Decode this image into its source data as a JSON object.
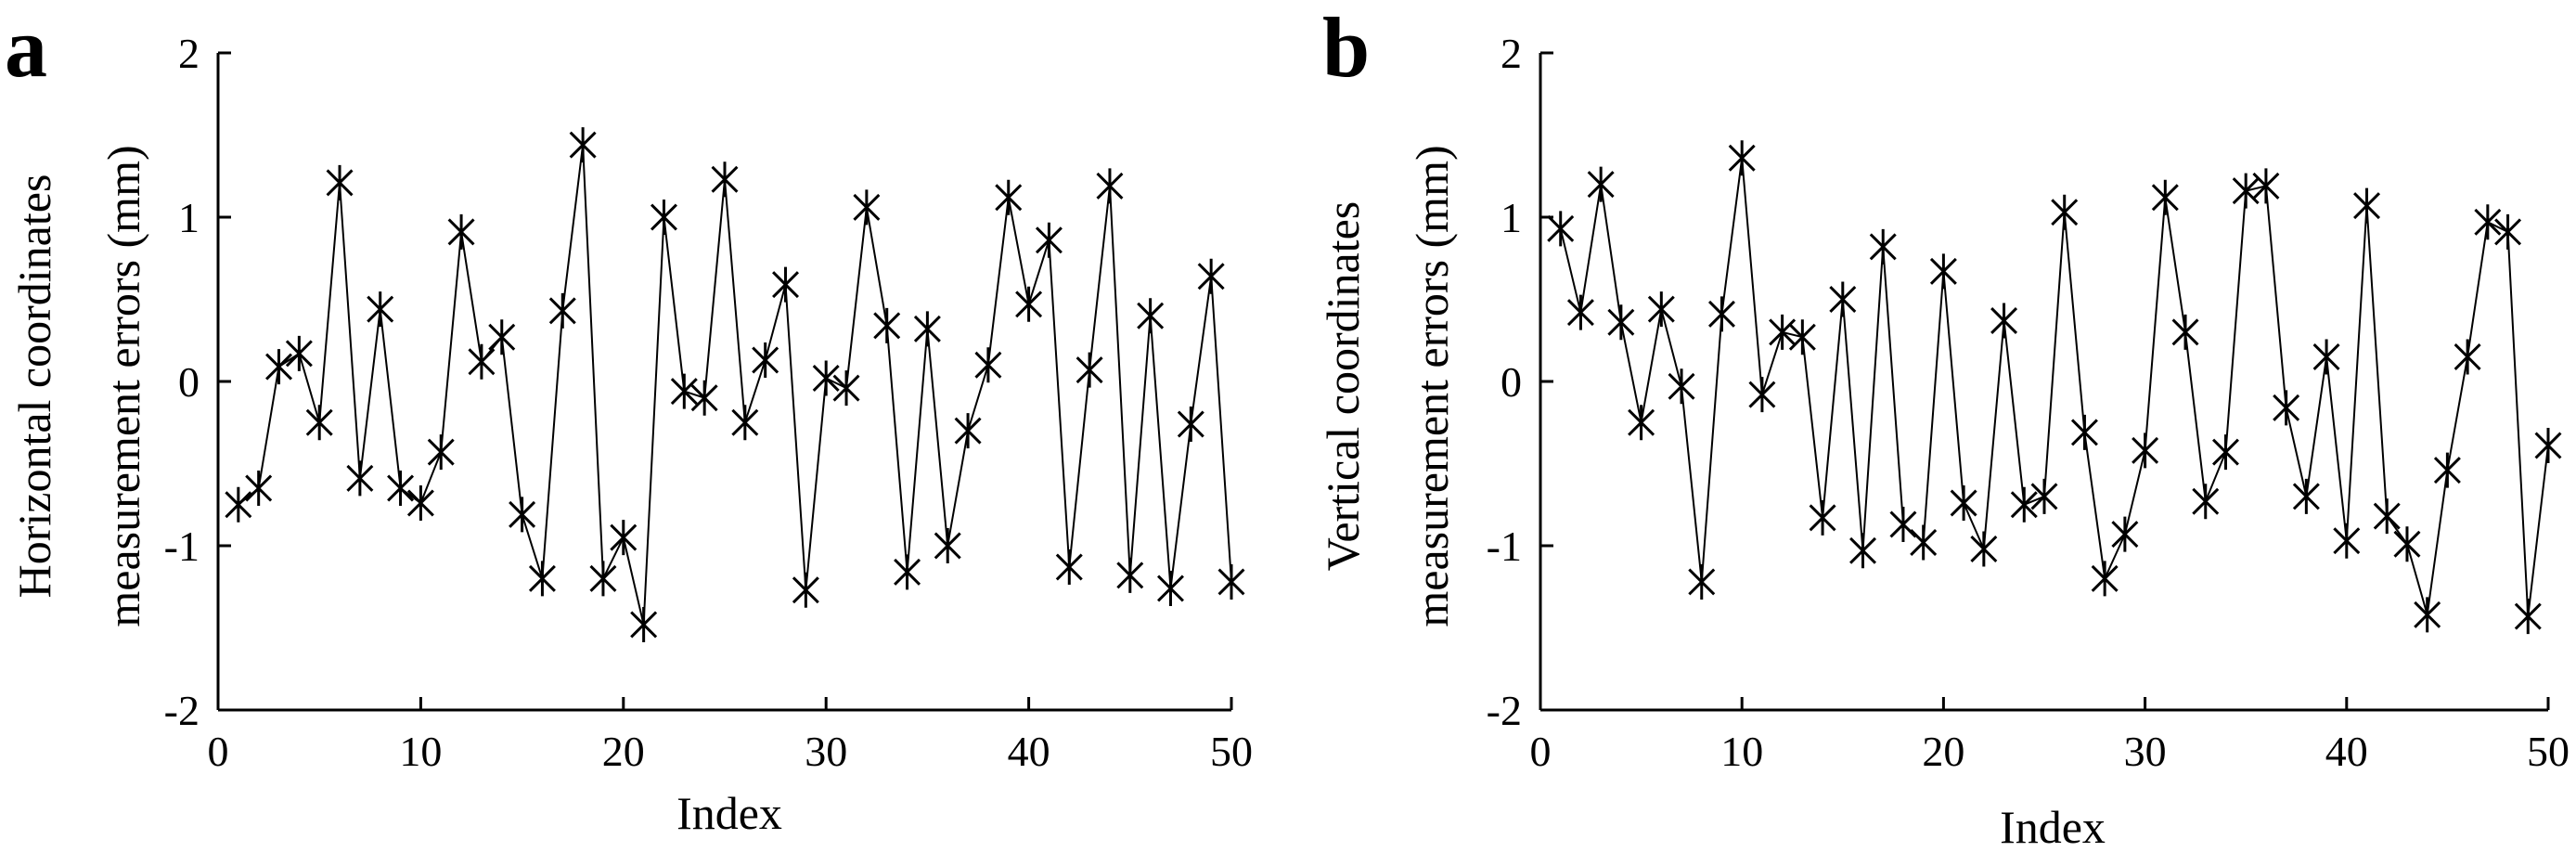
{
  "chart_data": [
    {
      "panel_label": "a",
      "type": "line",
      "marker": "asterisk",
      "title": "",
      "xlabel": "Index",
      "ylabel_lines": [
        "Horizontal coordinates",
        "measurement errors (mm)"
      ],
      "xlim": [
        0,
        50
      ],
      "ylim": [
        -2,
        2
      ],
      "xticks": [
        0,
        10,
        20,
        30,
        40,
        50
      ],
      "yticks": [
        2,
        1,
        0,
        -1,
        -2
      ],
      "grid": false,
      "series": [
        {
          "name": "Horizontal coordinates measurement errors",
          "x": [
            1,
            2,
            3,
            4,
            5,
            6,
            7,
            8,
            9,
            10,
            11,
            12,
            13,
            14,
            15,
            16,
            17,
            18,
            19,
            20,
            21,
            22,
            23,
            24,
            25,
            26,
            27,
            28,
            29,
            30,
            31,
            32,
            33,
            34,
            35,
            36,
            37,
            38,
            39,
            40,
            41,
            42,
            43,
            44,
            45,
            46,
            47,
            48,
            49,
            50
          ],
          "y": [
            -0.75,
            -0.65,
            0.09,
            0.17,
            -0.25,
            1.21,
            -0.59,
            0.44,
            -0.65,
            -0.74,
            -0.43,
            0.91,
            0.12,
            0.27,
            -0.81,
            -1.2,
            0.43,
            1.44,
            -1.2,
            -0.95,
            -1.48,
            1.0,
            -0.06,
            -0.1,
            1.23,
            -0.25,
            0.13,
            0.59,
            -1.27,
            0.02,
            -0.04,
            1.06,
            0.34,
            -1.16,
            0.32,
            -1.0,
            -0.3,
            0.1,
            1.12,
            0.47,
            0.86,
            -1.13,
            0.07,
            1.19,
            -1.18,
            0.4,
            -1.26,
            -0.26,
            0.64,
            -1.22
          ]
        }
      ]
    },
    {
      "panel_label": "b",
      "type": "line",
      "marker": "asterisk",
      "title": "",
      "xlabel": "Index",
      "ylabel_lines": [
        "Vertical coordinates",
        "measurement errors (mm)"
      ],
      "xlim": [
        0,
        50
      ],
      "ylim": [
        -2,
        2
      ],
      "xticks": [
        0,
        10,
        20,
        30,
        40,
        50
      ],
      "yticks": [
        2,
        1,
        0,
        -1,
        -2
      ],
      "grid": false,
      "series": [
        {
          "name": "Vertical coordinates measurement errors",
          "x": [
            1,
            2,
            3,
            4,
            5,
            6,
            7,
            8,
            9,
            10,
            11,
            12,
            13,
            14,
            15,
            16,
            17,
            18,
            19,
            20,
            21,
            22,
            23,
            24,
            25,
            26,
            27,
            28,
            29,
            30,
            31,
            32,
            33,
            34,
            35,
            36,
            37,
            38,
            39,
            40,
            41,
            42,
            43,
            44,
            45,
            46,
            47,
            48,
            49,
            50
          ],
          "y": [
            0.93,
            0.42,
            1.2,
            0.36,
            -0.25,
            0.44,
            -0.03,
            -1.22,
            0.41,
            1.36,
            -0.08,
            0.3,
            0.27,
            -0.83,
            0.5,
            -1.03,
            0.82,
            -0.87,
            -0.98,
            0.67,
            -0.74,
            -1.02,
            0.37,
            -0.75,
            -0.7,
            1.03,
            -0.31,
            -1.2,
            -0.93,
            -0.42,
            1.12,
            0.3,
            -0.73,
            -0.43,
            1.16,
            1.19,
            -0.16,
            -0.7,
            0.15,
            -0.97,
            1.07,
            -0.82,
            -0.99,
            -1.42,
            -0.54,
            0.15,
            0.97,
            0.91,
            -1.43,
            -0.39
          ]
        }
      ]
    }
  ]
}
